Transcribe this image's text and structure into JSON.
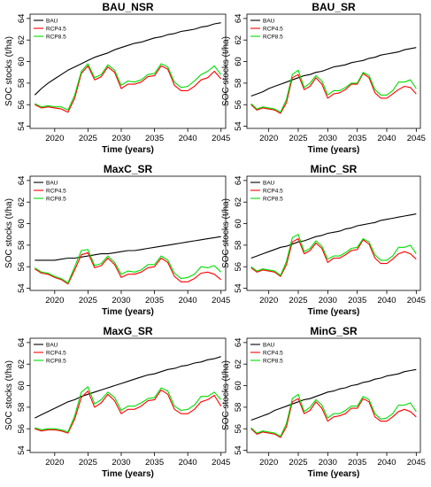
{
  "chart_data": [
    {
      "type": "line",
      "title": "BAU_NSR",
      "xlabel": "Time (years)",
      "ylabel": "SOC stocks (t/ha)",
      "xlim": [
        2016.3,
        2045.7
      ],
      "ylim": [
        53.8,
        64.4
      ],
      "xticks": [
        2020,
        2025,
        2030,
        2035,
        2040,
        2045
      ],
      "yticks": [
        54,
        56,
        58,
        60,
        62,
        64
      ],
      "legend_position": "top-left",
      "x": [
        2017,
        2018,
        2019,
        2020,
        2021,
        2022,
        2023,
        2024,
        2025,
        2026,
        2027,
        2028,
        2029,
        2030,
        2031,
        2032,
        2033,
        2034,
        2035,
        2036,
        2037,
        2038,
        2039,
        2040,
        2041,
        2042,
        2043,
        2044,
        2045
      ],
      "series": [
        {
          "name": "BAU",
          "color": "#000000",
          "values": [
            56.9,
            57.5,
            58.0,
            58.4,
            58.8,
            59.2,
            59.5,
            59.8,
            60.1,
            60.4,
            60.6,
            60.8,
            61.1,
            61.3,
            61.5,
            61.7,
            61.8,
            62.0,
            62.2,
            62.3,
            62.5,
            62.6,
            62.8,
            62.9,
            63.0,
            63.2,
            63.3,
            63.5,
            63.6
          ]
        },
        {
          "name": "RCP4.5",
          "color": "#ff0000",
          "values": [
            56.0,
            55.7,
            55.8,
            55.7,
            55.6,
            55.3,
            56.6,
            58.9,
            59.6,
            58.3,
            58.6,
            59.5,
            59.0,
            57.5,
            57.9,
            57.9,
            58.1,
            58.6,
            58.7,
            59.6,
            59.3,
            57.8,
            57.3,
            57.3,
            57.7,
            58.3,
            58.5,
            59.1,
            58.4
          ]
        },
        {
          "name": "RCP8.5",
          "color": "#00dd00",
          "values": [
            56.1,
            55.8,
            55.9,
            55.8,
            55.8,
            55.5,
            56.9,
            59.1,
            59.8,
            58.5,
            58.8,
            59.7,
            59.2,
            57.8,
            58.2,
            58.1,
            58.3,
            58.8,
            58.9,
            59.8,
            59.5,
            58.1,
            57.6,
            57.7,
            58.2,
            58.8,
            59.1,
            59.6,
            58.8
          ]
        }
      ]
    },
    {
      "type": "line",
      "title": "BAU_SR",
      "xlabel": "Time (years)",
      "ylabel": "SOC stocks (t/ha)",
      "xlim": [
        2016.3,
        2045.7
      ],
      "ylim": [
        53.8,
        64.4
      ],
      "xticks": [
        2020,
        2025,
        2030,
        2035,
        2040,
        2045
      ],
      "yticks": [
        54,
        56,
        58,
        60,
        62,
        64
      ],
      "legend_position": "top-left",
      "x": [
        2017,
        2018,
        2019,
        2020,
        2021,
        2022,
        2023,
        2024,
        2025,
        2026,
        2027,
        2028,
        2029,
        2030,
        2031,
        2032,
        2033,
        2034,
        2035,
        2036,
        2037,
        2038,
        2039,
        2040,
        2041,
        2042,
        2043,
        2044,
        2045
      ],
      "series": [
        {
          "name": "BAU",
          "color": "#000000",
          "values": [
            56.8,
            57.0,
            57.2,
            57.5,
            57.7,
            57.9,
            58.1,
            58.3,
            58.5,
            58.7,
            58.8,
            59.0,
            59.1,
            59.3,
            59.5,
            59.6,
            59.7,
            59.9,
            60.0,
            60.1,
            60.3,
            60.4,
            60.6,
            60.7,
            60.8,
            60.9,
            61.1,
            61.2,
            61.3
          ]
        },
        {
          "name": "RCP4.5",
          "color": "#ff0000",
          "values": [
            56.0,
            55.5,
            55.7,
            55.6,
            55.5,
            55.2,
            56.2,
            58.5,
            58.8,
            57.4,
            57.7,
            58.5,
            57.9,
            56.6,
            57.0,
            57.1,
            57.4,
            57.9,
            57.9,
            58.9,
            58.5,
            57.1,
            56.6,
            56.6,
            57.0,
            57.4,
            57.7,
            57.6,
            57.0
          ]
        },
        {
          "name": "RCP8.5",
          "color": "#00dd00",
          "values": [
            56.1,
            55.6,
            55.8,
            55.7,
            55.6,
            55.3,
            56.5,
            58.8,
            59.2,
            57.6,
            58.0,
            58.7,
            58.2,
            56.9,
            57.3,
            57.3,
            57.6,
            58.0,
            58.0,
            59.0,
            58.7,
            57.4,
            56.9,
            56.9,
            57.3,
            58.1,
            58.1,
            58.3,
            57.5
          ]
        }
      ]
    },
    {
      "type": "line",
      "title": "MaxC_SR",
      "xlabel": "Time (years)",
      "ylabel": "SOC stocks (t/ha)",
      "xlim": [
        2016.3,
        2045.7
      ],
      "ylim": [
        53.8,
        64.4
      ],
      "xticks": [
        2020,
        2025,
        2030,
        2035,
        2040,
        2045
      ],
      "yticks": [
        54,
        56,
        58,
        60,
        62,
        64
      ],
      "legend_position": "top-left",
      "x": [
        2017,
        2018,
        2019,
        2020,
        2021,
        2022,
        2023,
        2024,
        2025,
        2026,
        2027,
        2028,
        2029,
        2030,
        2031,
        2032,
        2033,
        2034,
        2035,
        2036,
        2037,
        2038,
        2039,
        2040,
        2041,
        2042,
        2043,
        2044,
        2045
      ],
      "series": [
        {
          "name": "BAU",
          "color": "#000000",
          "values": [
            56.6,
            56.6,
            56.6,
            56.6,
            56.7,
            56.8,
            56.8,
            56.9,
            57.0,
            57.1,
            57.2,
            57.2,
            57.3,
            57.4,
            57.5,
            57.5,
            57.6,
            57.7,
            57.8,
            57.9,
            58.0,
            58.1,
            58.2,
            58.3,
            58.4,
            58.5,
            58.6,
            58.7,
            58.8
          ]
        },
        {
          "name": "RCP4.5",
          "color": "#ff0000",
          "values": [
            55.8,
            55.4,
            55.3,
            55.0,
            54.8,
            54.4,
            55.7,
            57.1,
            57.3,
            55.9,
            56.1,
            56.8,
            56.2,
            55.0,
            55.3,
            55.3,
            55.5,
            55.9,
            56.0,
            56.8,
            56.4,
            55.1,
            54.6,
            54.6,
            54.9,
            55.4,
            55.5,
            55.3,
            54.8
          ]
        },
        {
          "name": "RCP8.5",
          "color": "#00dd00",
          "values": [
            55.9,
            55.5,
            55.4,
            55.1,
            54.9,
            54.5,
            56.0,
            57.5,
            57.6,
            56.1,
            56.3,
            57.0,
            56.4,
            55.3,
            55.6,
            55.5,
            55.7,
            56.2,
            56.2,
            57.0,
            56.6,
            55.4,
            54.9,
            55.0,
            55.3,
            56.0,
            55.9,
            56.1,
            55.5
          ]
        }
      ]
    },
    {
      "type": "line",
      "title": "MinC_SR",
      "xlabel": "Time (years)",
      "ylabel": "SOC stocks (t/ha)",
      "xlim": [
        2016.3,
        2045.7
      ],
      "ylim": [
        53.8,
        64.4
      ],
      "xticks": [
        2020,
        2025,
        2030,
        2035,
        2040,
        2045
      ],
      "yticks": [
        54,
        56,
        58,
        60,
        62,
        64
      ],
      "legend_position": "top-left",
      "x": [
        2017,
        2018,
        2019,
        2020,
        2021,
        2022,
        2023,
        2024,
        2025,
        2026,
        2027,
        2028,
        2029,
        2030,
        2031,
        2032,
        2033,
        2034,
        2035,
        2036,
        2037,
        2038,
        2039,
        2040,
        2041,
        2042,
        2043,
        2044,
        2045
      ],
      "series": [
        {
          "name": "BAU",
          "color": "#000000",
          "values": [
            56.8,
            57.0,
            57.2,
            57.4,
            57.6,
            57.8,
            57.9,
            58.1,
            58.3,
            58.4,
            58.6,
            58.8,
            58.9,
            59.1,
            59.2,
            59.3,
            59.5,
            59.6,
            59.8,
            59.9,
            60.0,
            60.1,
            60.3,
            60.4,
            60.5,
            60.6,
            60.7,
            60.8,
            60.9
          ]
        },
        {
          "name": "RCP4.5",
          "color": "#ff0000",
          "values": [
            55.9,
            55.5,
            55.7,
            55.6,
            55.5,
            55.1,
            56.2,
            58.3,
            58.6,
            57.2,
            57.5,
            58.2,
            57.7,
            56.4,
            56.8,
            56.8,
            57.1,
            57.5,
            57.6,
            58.5,
            58.1,
            56.8,
            56.3,
            56.3,
            56.7,
            57.2,
            57.4,
            57.2,
            56.7
          ]
        },
        {
          "name": "RCP8.5",
          "color": "#00dd00",
          "values": [
            56.0,
            55.6,
            55.8,
            55.7,
            55.6,
            55.2,
            56.5,
            58.7,
            59.0,
            57.4,
            57.7,
            58.4,
            57.9,
            56.7,
            57.0,
            57.0,
            57.3,
            57.7,
            57.8,
            58.6,
            58.3,
            57.1,
            56.6,
            56.6,
            57.0,
            57.8,
            57.8,
            58.0,
            57.2
          ]
        }
      ]
    },
    {
      "type": "line",
      "title": "MaxG_SR",
      "xlabel": "Time (years)",
      "ylabel": "SOC stocks (t/ha)",
      "xlim": [
        2016.3,
        2045.7
      ],
      "ylim": [
        53.8,
        64.4
      ],
      "xticks": [
        2020,
        2025,
        2030,
        2035,
        2040,
        2045
      ],
      "yticks": [
        54,
        56,
        58,
        60,
        62,
        64
      ],
      "legend_position": "top-left",
      "x": [
        2017,
        2018,
        2019,
        2020,
        2021,
        2022,
        2023,
        2024,
        2025,
        2026,
        2027,
        2028,
        2029,
        2030,
        2031,
        2032,
        2033,
        2034,
        2035,
        2036,
        2037,
        2038,
        2039,
        2040,
        2041,
        2042,
        2043,
        2044,
        2045
      ],
      "series": [
        {
          "name": "BAU",
          "color": "#000000",
          "values": [
            57.0,
            57.3,
            57.6,
            57.9,
            58.2,
            58.5,
            58.7,
            59.0,
            59.2,
            59.4,
            59.6,
            59.8,
            60.0,
            60.2,
            60.4,
            60.6,
            60.8,
            61.0,
            61.1,
            61.3,
            61.5,
            61.6,
            61.8,
            61.9,
            62.1,
            62.2,
            62.4,
            62.5,
            62.7
          ]
        },
        {
          "name": "RCP4.5",
          "color": "#ff0000",
          "values": [
            56.0,
            55.8,
            55.9,
            55.9,
            55.8,
            55.6,
            56.9,
            58.9,
            59.5,
            58.0,
            58.4,
            59.2,
            58.6,
            57.4,
            57.8,
            57.8,
            58.1,
            58.6,
            58.7,
            59.6,
            59.2,
            57.8,
            57.4,
            57.4,
            57.8,
            58.5,
            58.7,
            59.1,
            58.1
          ]
        },
        {
          "name": "RCP8.5",
          "color": "#00dd00",
          "values": [
            56.1,
            55.9,
            56.0,
            56.0,
            55.9,
            55.7,
            57.2,
            59.4,
            59.9,
            58.3,
            58.7,
            59.4,
            58.9,
            57.7,
            58.1,
            58.1,
            58.4,
            58.8,
            58.9,
            59.8,
            59.5,
            58.1,
            57.7,
            57.8,
            58.2,
            59.0,
            59.0,
            59.4,
            58.7
          ]
        }
      ]
    },
    {
      "type": "line",
      "title": "MinG_SR",
      "xlabel": "Time (years)",
      "ylabel": "SOC stocks (t/ha)",
      "xlim": [
        2016.3,
        2045.7
      ],
      "ylim": [
        53.8,
        64.4
      ],
      "xticks": [
        2020,
        2025,
        2030,
        2035,
        2040,
        2045
      ],
      "yticks": [
        54,
        56,
        58,
        60,
        62,
        64
      ],
      "legend_position": "top-left",
      "x": [
        2017,
        2018,
        2019,
        2020,
        2021,
        2022,
        2023,
        2024,
        2025,
        2026,
        2027,
        2028,
        2029,
        2030,
        2031,
        2032,
        2033,
        2034,
        2035,
        2036,
        2037,
        2038,
        2039,
        2040,
        2041,
        2042,
        2043,
        2044,
        2045
      ],
      "series": [
        {
          "name": "BAU",
          "color": "#000000",
          "values": [
            56.8,
            57.0,
            57.2,
            57.4,
            57.7,
            57.9,
            58.1,
            58.3,
            58.5,
            58.7,
            58.8,
            59.0,
            59.2,
            59.4,
            59.5,
            59.7,
            59.8,
            60.0,
            60.1,
            60.3,
            60.4,
            60.6,
            60.7,
            60.9,
            61.0,
            61.1,
            61.3,
            61.4,
            61.5
          ]
        },
        {
          "name": "RCP4.5",
          "color": "#ff0000",
          "values": [
            56.0,
            55.5,
            55.7,
            55.6,
            55.5,
            55.2,
            56.2,
            58.5,
            58.8,
            57.4,
            57.7,
            58.5,
            57.9,
            56.7,
            57.1,
            57.2,
            57.4,
            57.9,
            57.9,
            58.8,
            58.5,
            57.1,
            56.7,
            56.7,
            57.1,
            57.6,
            57.8,
            57.6,
            57.1
          ]
        },
        {
          "name": "RCP8.5",
          "color": "#00dd00",
          "values": [
            56.1,
            55.6,
            55.8,
            55.7,
            55.6,
            55.3,
            56.5,
            58.8,
            59.2,
            57.6,
            58.0,
            58.7,
            58.2,
            57.0,
            57.4,
            57.4,
            57.7,
            58.1,
            58.1,
            59.0,
            58.7,
            57.4,
            56.9,
            57.0,
            57.4,
            58.2,
            58.2,
            58.4,
            57.6
          ]
        }
      ]
    }
  ]
}
